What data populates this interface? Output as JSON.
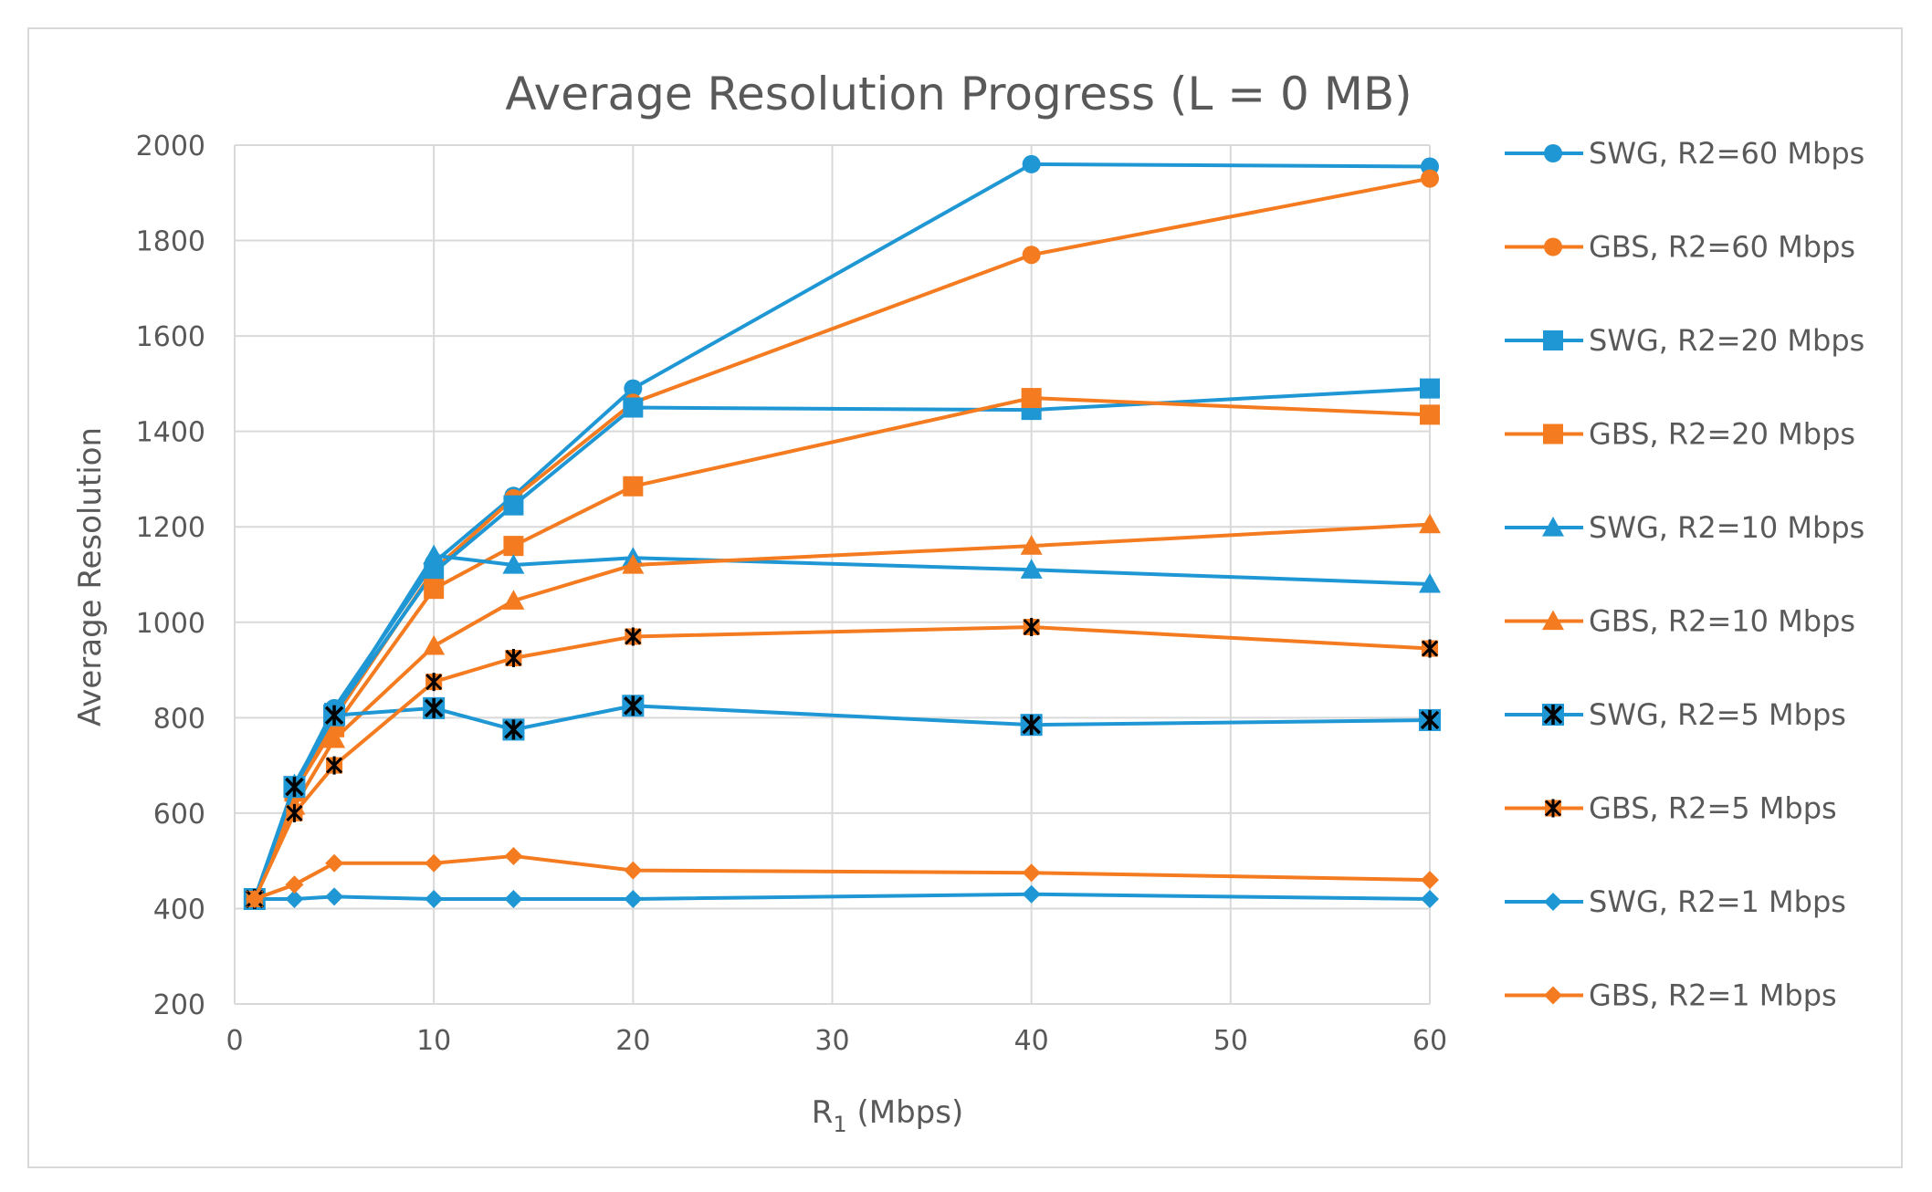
{
  "chart_data": {
    "type": "line",
    "title": "Average Resolution Progress (L = 0 MB)",
    "xlabel_main": "R",
    "xlabel_sub": "1",
    "xlabel_rest": " (Mbps)",
    "ylabel": "Average Resolution",
    "xlim": [
      0,
      60
    ],
    "ylim": [
      200,
      2000
    ],
    "xticks": [
      0,
      10,
      20,
      30,
      40,
      50,
      60
    ],
    "yticks": [
      200,
      400,
      600,
      800,
      1000,
      1200,
      1400,
      1600,
      1800,
      2000
    ],
    "grid": true,
    "legend_position": "right",
    "x": [
      1,
      3,
      5,
      10,
      14,
      20,
      40,
      60
    ],
    "series": [
      {
        "name": "SWG, R2=60 Mbps",
        "color": "#1f97d4",
        "marker": "circle",
        "values": [
          420,
          655,
          820,
          1125,
          1265,
          1490,
          1960,
          1955
        ]
      },
      {
        "name": "GBS, R2=60 Mbps",
        "color": "#f47b20",
        "marker": "circle",
        "values": [
          420,
          640,
          800,
          1110,
          1260,
          1460,
          1770,
          1930
        ]
      },
      {
        "name": "SWG, R2=20 Mbps",
        "color": "#1f97d4",
        "marker": "square",
        "values": [
          420,
          655,
          810,
          1105,
          1245,
          1450,
          1445,
          1490
        ]
      },
      {
        "name": "GBS, R2=20 Mbps",
        "color": "#f47b20",
        "marker": "square",
        "values": [
          420,
          645,
          780,
          1070,
          1160,
          1285,
          1470,
          1435
        ]
      },
      {
        "name": "SWG, R2=10 Mbps",
        "color": "#1f97d4",
        "marker": "triangle",
        "values": [
          420,
          660,
          810,
          1140,
          1120,
          1135,
          1110,
          1080
        ]
      },
      {
        "name": "GBS, R2=10 Mbps",
        "color": "#f47b20",
        "marker": "triangle",
        "values": [
          420,
          615,
          755,
          950,
          1045,
          1120,
          1160,
          1205
        ]
      },
      {
        "name": "SWG, R2=5 Mbps",
        "color": "#1f97d4",
        "marker": "xsquare",
        "values": [
          420,
          655,
          805,
          820,
          775,
          825,
          785,
          795
        ]
      },
      {
        "name": "GBS, R2=5 Mbps",
        "color": "#f47b20",
        "marker": "asterisk",
        "values": [
          420,
          600,
          700,
          875,
          925,
          970,
          990,
          945
        ]
      },
      {
        "name": "SWG, R2=1 Mbps",
        "color": "#1f97d4",
        "marker": "diamond",
        "values": [
          420,
          420,
          425,
          420,
          420,
          420,
          430,
          420
        ]
      },
      {
        "name": "GBS, R2=1 Mbps",
        "color": "#f47b20",
        "marker": "diamond",
        "values": [
          420,
          450,
          495,
          495,
          510,
          480,
          475,
          460
        ]
      }
    ]
  }
}
